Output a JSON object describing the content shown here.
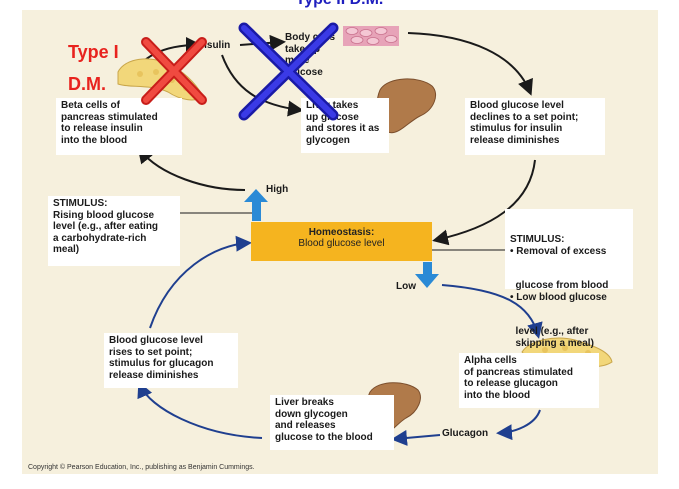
{
  "title": "Type II D.M.",
  "annotations": {
    "type1_line1": "Type I",
    "type1_line2": "D.M."
  },
  "labels": {
    "insulin": "Insulin",
    "high": "High",
    "low": "Low",
    "glucagon": "Glucagon"
  },
  "homeostasis": {
    "title": "Homeostasis:",
    "subtitle": "Blood glucose level"
  },
  "boxes": {
    "beta_cells": [
      "Beta cells of",
      "pancreas stimulated",
      "to release insulin",
      "into the blood"
    ],
    "body_cells": [
      "Body cells",
      "take up more",
      "glucose"
    ],
    "liver_takes": [
      "Liver takes",
      "up glucose",
      "and stores it as",
      "glycogen"
    ],
    "bg_declines": [
      "Blood glucose level",
      "declines to a set point;",
      "stimulus for insulin",
      "release diminishes"
    ],
    "stimulus_rising": [
      "STIMULUS:",
      "Rising blood glucose",
      "level (e.g., after eating",
      "a carbohydrate-rich",
      "meal)"
    ],
    "stimulus_low": [
      "STIMULUS:",
      "• Removal of excess",
      "  glucose from blood",
      "• Low blood glucose",
      "  level (e.g., after",
      "  skipping a meal)"
    ],
    "bg_rises": [
      "Blood glucose level",
      "rises to set point;",
      "stimulus for glucagon",
      "release diminishes"
    ],
    "alpha_cells": [
      "Alpha cells",
      "of pancreas stimulated",
      "to release glucagon",
      "into the blood"
    ],
    "liver_breaks": [
      "Liver breaks",
      "down glycogen",
      "and releases",
      "glucose to the blood"
    ]
  },
  "copyright": "Copyright © Pearson Education, Inc., publishing as Benjamin Cummings.",
  "colors": {
    "panel": "#f6f0dd",
    "cycle_arrow_top": "#1a1a1a",
    "cycle_arrow_bottom": "#1f3f8f",
    "homeostasis_box": "#f5b41f",
    "type1_mark": "#e8231e",
    "type2_mark": "#2b2bd6",
    "liver": "#b07a4a",
    "pancreas": "#f2d77a",
    "body_cells": "#e7a3b8"
  },
  "icons": [
    "pancreas-icon",
    "liver-icon",
    "body-cells-icon",
    "red-x-mark",
    "blue-x-mark"
  ]
}
